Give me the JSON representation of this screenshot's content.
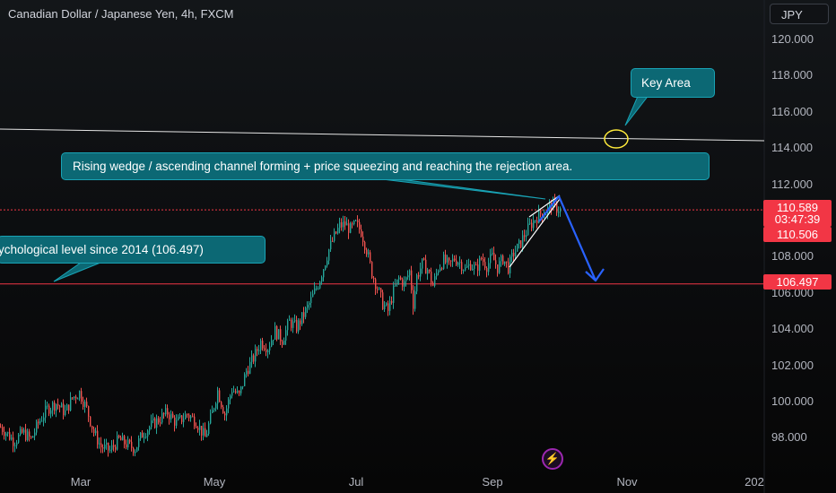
{
  "header": {
    "title": "Canadian Dollar / Japanese Yen, 4h, FXCM",
    "currency_button": "JPY"
  },
  "annotations": {
    "key_area": "Key Area",
    "wedge": "Rising wedge / ascending channel  forming + price squeezing and reaching the rejection area.",
    "psych": "ychological level since 2014 (106.497)"
  },
  "price_labels": {
    "last_price": "110.589",
    "countdown": "03:47:39",
    "bid": "110.506",
    "level": "106.497"
  },
  "colors": {
    "up": "#26a69a",
    "down": "#ef5350",
    "arrow": "#2962ff",
    "callout_bg": "#0c6874",
    "key_circle": "#ffeb3b",
    "price_line": "#f23645"
  },
  "icons": {
    "replay": "lightning-bolt-icon"
  },
  "chart_data": {
    "type": "candlestick",
    "title": "Canadian Dollar / Japanese Yen, 4h, FXCM",
    "y_ticks": [
      "120.000",
      "118.000",
      "116.000",
      "114.000",
      "112.000",
      "110.000",
      "108.000",
      "106.000",
      "104.000",
      "102.000",
      "100.000",
      "98.000"
    ],
    "x_ticks": [
      "Mar",
      "May",
      "Jul",
      "Sep",
      "Nov",
      "202"
    ],
    "ylim": [
      97.0,
      121.0
    ],
    "grid": false,
    "path": [
      [
        0,
        98.6
      ],
      [
        8,
        98.2
      ],
      [
        15,
        97.8
      ],
      [
        25,
        98.3
      ],
      [
        34,
        97.9
      ],
      [
        42,
        98.8
      ],
      [
        52,
        99.6
      ],
      [
        62,
        99.9
      ],
      [
        72,
        99.4
      ],
      [
        80,
        100.2
      ],
      [
        88,
        100.5
      ],
      [
        96,
        99.6
      ],
      [
        104,
        98.3
      ],
      [
        112,
        97.5
      ],
      [
        122,
        97.3
      ],
      [
        132,
        97.9
      ],
      [
        142,
        97.6
      ],
      [
        150,
        97.4
      ],
      [
        158,
        98.2
      ],
      [
        166,
        98.6
      ],
      [
        176,
        99.0
      ],
      [
        186,
        99.4
      ],
      [
        196,
        98.8
      ],
      [
        208,
        99.3
      ],
      [
        218,
        98.9
      ],
      [
        228,
        98.0
      ],
      [
        236,
        99.4
      ],
      [
        242,
        100.6
      ],
      [
        250,
        99.3
      ],
      [
        258,
        100.7
      ],
      [
        266,
        100.3
      ],
      [
        274,
        101.7
      ],
      [
        282,
        102.4
      ],
      [
        290,
        103.3
      ],
      [
        298,
        103.0
      ],
      [
        306,
        103.9
      ],
      [
        314,
        103.4
      ],
      [
        322,
        104.4
      ],
      [
        330,
        104.1
      ],
      [
        338,
        104.8
      ],
      [
        346,
        105.6
      ],
      [
        354,
        106.5
      ],
      [
        360,
        107.4
      ],
      [
        366,
        108.4
      ],
      [
        372,
        109.1
      ],
      [
        378,
        109.7
      ],
      [
        384,
        109.8
      ],
      [
        390,
        109.5
      ],
      [
        396,
        109.8
      ],
      [
        402,
        109.4
      ],
      [
        408,
        108.4
      ],
      [
        414,
        107.1
      ],
      [
        420,
        106.3
      ],
      [
        426,
        105.4
      ],
      [
        432,
        105.0
      ],
      [
        438,
        106.1
      ],
      [
        444,
        106.8
      ],
      [
        450,
        106.5
      ],
      [
        456,
        107.2
      ],
      [
        460,
        105.4
      ],
      [
        464,
        106.9
      ],
      [
        470,
        107.6
      ],
      [
        476,
        107.3
      ],
      [
        482,
        106.4
      ],
      [
        488,
        107.4
      ],
      [
        494,
        107.8
      ],
      [
        500,
        107.5
      ],
      [
        506,
        107.9
      ],
      [
        512,
        107.7
      ],
      [
        518,
        107.3
      ],
      [
        524,
        107.6
      ],
      [
        530,
        107.3
      ],
      [
        536,
        107.9
      ],
      [
        542,
        107.5
      ],
      [
        548,
        108.0
      ],
      [
        554,
        107.4
      ],
      [
        560,
        107.9
      ],
      [
        566,
        107.4
      ],
      [
        572,
        108.2
      ],
      [
        578,
        108.6
      ],
      [
        584,
        109.2
      ],
      [
        590,
        109.7
      ],
      [
        596,
        110.1
      ],
      [
        602,
        110.4
      ],
      [
        608,
        110.5
      ],
      [
        614,
        110.9
      ],
      [
        619,
        110.7
      ],
      [
        624,
        110.6
      ]
    ],
    "levels": {
      "key_level": 114.4,
      "last_price": 110.589,
      "bid": 110.506,
      "psychological": 106.497
    }
  }
}
